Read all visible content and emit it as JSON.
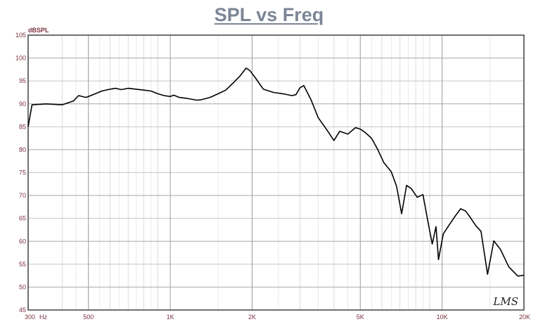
{
  "chart_data": {
    "type": "line",
    "title": "SPL vs Freq",
    "ylabel": "dBSPL",
    "xlabel_unit": "Hz",
    "x_scale": "log",
    "xlim": [
      300,
      20000
    ],
    "ylim": [
      45,
      105
    ],
    "yticks": [
      45,
      50,
      55,
      60,
      65,
      70,
      75,
      80,
      85,
      90,
      95,
      100,
      105
    ],
    "xtick_labels": [
      {
        "value": 300,
        "label": "300"
      },
      {
        "value": 500,
        "label": "500"
      },
      {
        "value": 1000,
        "label": "1K"
      },
      {
        "value": 2000,
        "label": "2K"
      },
      {
        "value": 5000,
        "label": "5K"
      },
      {
        "value": 10000,
        "label": "10K"
      },
      {
        "value": 20000,
        "label": "20K"
      }
    ],
    "grid": true,
    "watermark": "LMS",
    "series": [
      {
        "color": "#000000",
        "x": [
          300,
          310,
          350,
          400,
          420,
          440,
          460,
          490,
          530,
          560,
          600,
          630,
          660,
          700,
          750,
          800,
          850,
          900,
          950,
          1000,
          1030,
          1080,
          1150,
          1250,
          1300,
          1400,
          1500,
          1600,
          1700,
          1800,
          1900,
          1960,
          2050,
          2200,
          2400,
          2600,
          2800,
          2900,
          3000,
          3100,
          3300,
          3500,
          3800,
          4000,
          4200,
          4500,
          4800,
          5000,
          5200,
          5500,
          5800,
          6100,
          6500,
          6800,
          7100,
          7400,
          7700,
          8100,
          8500,
          8900,
          9200,
          9500,
          9700,
          10100,
          10600,
          11200,
          11700,
          12200,
          12700,
          13300,
          13900,
          14700,
          15500,
          16400,
          17600,
          19000,
          20000
        ],
        "y": [
          85,
          89.8,
          90,
          89.8,
          90.2,
          90.6,
          91.8,
          91.4,
          92.2,
          92.8,
          93.2,
          93.4,
          93.1,
          93.4,
          93.2,
          93,
          92.8,
          92.2,
          91.8,
          91.6,
          91.9,
          91.4,
          91.2,
          90.8,
          90.9,
          91.4,
          92.2,
          93,
          94.5,
          96,
          97.8,
          97.3,
          95.8,
          93.2,
          92.5,
          92.2,
          91.8,
          92,
          93.5,
          94,
          90.8,
          87,
          84,
          82,
          84,
          83.4,
          84.8,
          84.5,
          83.8,
          82.5,
          80,
          77.2,
          75.2,
          72,
          66,
          72.2,
          71.5,
          69.6,
          70.2,
          63.8,
          59.4,
          63.2,
          56,
          61.6,
          63.5,
          65.6,
          67.1,
          66.6,
          65.2,
          63.4,
          62.2,
          52.8,
          60.1,
          58.2,
          54.4,
          52.4,
          52.6
        ]
      }
    ]
  }
}
